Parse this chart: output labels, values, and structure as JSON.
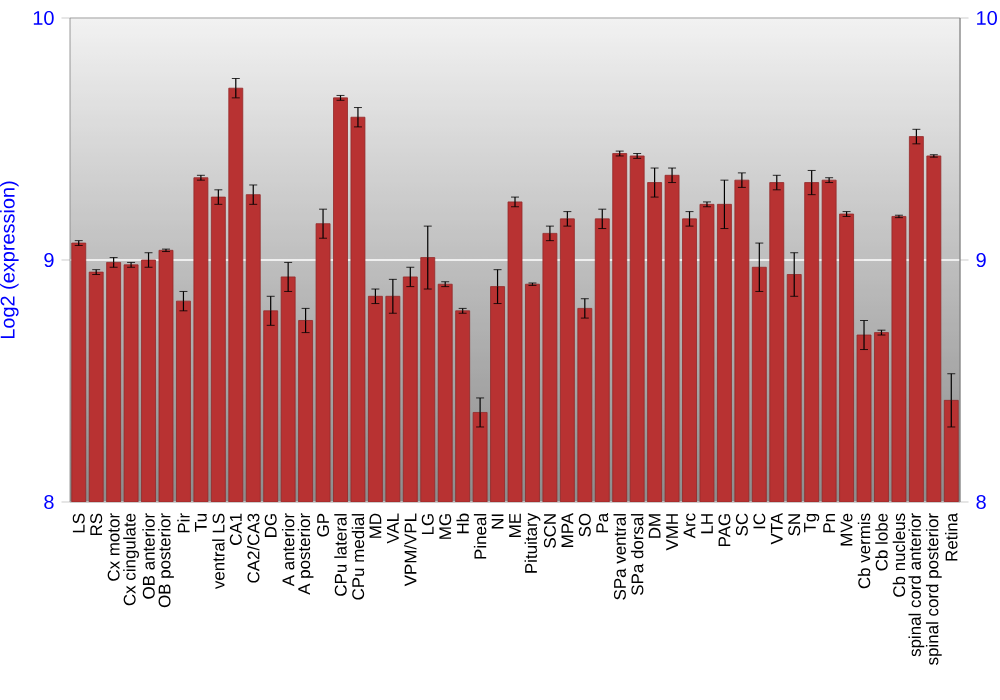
{
  "chart_data": {
    "type": "bar",
    "ylabel": "Log2 (expression)",
    "categories": [
      "LS",
      "RS",
      "Cx motor",
      "Cx cingulate",
      "OB anterior",
      "OB posterior",
      "Pir",
      "Tu",
      "ventral LS",
      "CA1",
      "CA2/CA3",
      "DG",
      "A anterior",
      "A posterior",
      "GP",
      "CPu lateral",
      "CPu medial",
      "MD",
      "VAL",
      "VPM/VPL",
      "LG",
      "MG",
      "Hb",
      "Pineal",
      "NI",
      "ME",
      "Pituitary",
      "SCN",
      "MPA",
      "SO",
      "Pa",
      "SPa ventral",
      "SPa dorsal",
      "DM",
      "VMH",
      "Arc",
      "LH",
      "PAG",
      "SC",
      "IC",
      "VTA",
      "SN",
      "Tg",
      "Pn",
      "MVe",
      "Cb vermis",
      "Cb lobe",
      "Cb nucleus",
      "spinal cord anterior",
      "spinal cord posterior",
      "Retina"
    ],
    "values": [
      9.07,
      8.95,
      8.99,
      8.98,
      9.0,
      9.04,
      8.83,
      9.34,
      9.26,
      9.71,
      9.27,
      8.79,
      8.93,
      8.75,
      9.15,
      9.67,
      9.59,
      8.85,
      8.85,
      8.93,
      9.01,
      8.9,
      8.79,
      8.37,
      8.89,
      9.24,
      8.9,
      9.11,
      9.17,
      8.8,
      9.17,
      9.44,
      9.43,
      9.32,
      9.35,
      9.17,
      9.23,
      9.23,
      9.33,
      8.97,
      9.32,
      8.94,
      9.32,
      9.33,
      9.19,
      8.69,
      8.7,
      9.18,
      9.51,
      9.43,
      8.42
    ],
    "errors": [
      0.01,
      0.01,
      0.02,
      0.01,
      0.03,
      0.005,
      0.04,
      0.01,
      0.03,
      0.04,
      0.04,
      0.06,
      0.06,
      0.05,
      0.06,
      0.01,
      0.04,
      0.03,
      0.07,
      0.04,
      0.13,
      0.01,
      0.01,
      0.06,
      0.07,
      0.02,
      0.005,
      0.03,
      0.03,
      0.04,
      0.04,
      0.01,
      0.01,
      0.06,
      0.03,
      0.03,
      0.01,
      0.1,
      0.03,
      0.1,
      0.03,
      0.09,
      0.05,
      0.01,
      0.01,
      0.06,
      0.01,
      0.005,
      0.03,
      0.005,
      0.11
    ],
    "color": "#b83232",
    "ylim": [
      8,
      10
    ],
    "yticks": [
      8,
      9,
      10
    ],
    "y2lim": [
      8,
      10
    ],
    "y2ticks": [
      8,
      9,
      10
    ],
    "grid": "y"
  }
}
